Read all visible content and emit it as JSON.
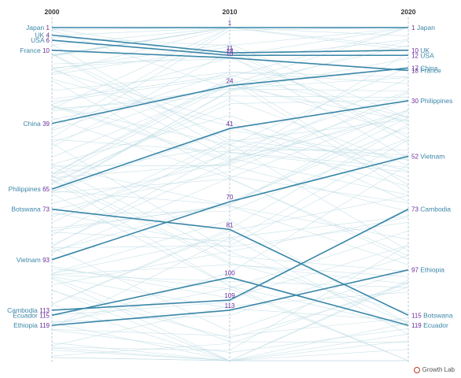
{
  "chart_data": {
    "type": "line",
    "subtype": "slope",
    "x": [
      "2000",
      "2010",
      "2020"
    ],
    "y_axis": "rank",
    "ylim": [
      1,
      133
    ],
    "y_inverted": true,
    "highlighted_series": [
      {
        "name": "Japan",
        "values": [
          1,
          1,
          1
        ]
      },
      {
        "name": "UK",
        "values": [
          4,
          11,
          10
        ]
      },
      {
        "name": "USA",
        "values": [
          6,
          12,
          12
        ]
      },
      {
        "name": "France",
        "values": [
          10,
          13,
          18
        ]
      },
      {
        "name": "China",
        "values": [
          39,
          24,
          17
        ]
      },
      {
        "name": "Philippines",
        "values": [
          65,
          41,
          30
        ]
      },
      {
        "name": "Botswana",
        "values": [
          73,
          81,
          115
        ]
      },
      {
        "name": "Vietnam",
        "values": [
          93,
          70,
          52
        ]
      },
      {
        "name": "Cambodia",
        "values": [
          113,
          109,
          73
        ]
      },
      {
        "name": "Ecuador",
        "values": [
          115,
          100,
          119
        ]
      },
      {
        "name": "Ethiopia",
        "values": [
          119,
          113,
          97
        ]
      }
    ],
    "background_series_count": 110,
    "colors": {
      "highlight": "#3a86a8",
      "background": "#bfdde5",
      "axis": "#a9c3cf",
      "rank_text": "#6a2a9c",
      "label_text": "#3b86a8"
    }
  },
  "brand": {
    "label": "Growth Lab"
  }
}
